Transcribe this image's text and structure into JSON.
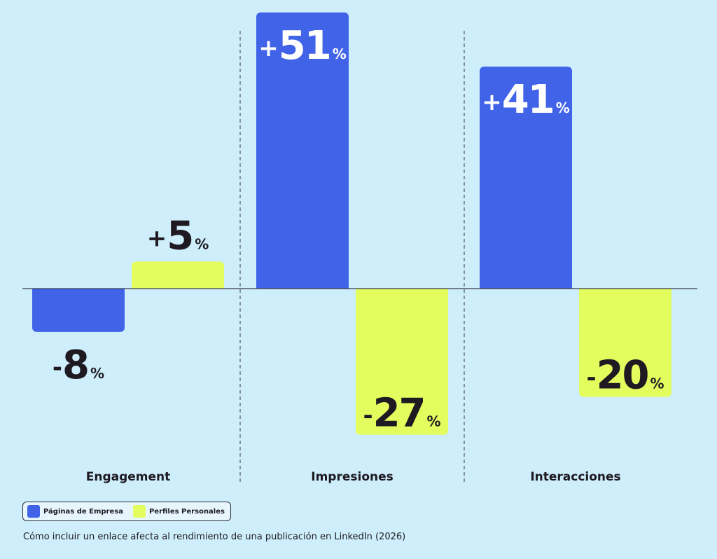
{
  "chart_data": {
    "type": "bar",
    "categories": [
      "Engagement",
      "Impresiones",
      "Interacciones"
    ],
    "series": [
      {
        "name": "Páginas de Empresa",
        "color": "#4063e8",
        "values": [
          -8,
          51,
          41
        ]
      },
      {
        "name": "Perfiles Personales",
        "color": "#e3fc5e",
        "values": [
          5,
          -27,
          -20
        ]
      }
    ],
    "value_labels": [
      [
        {
          "sign": "-",
          "num": "8",
          "pct": "%"
        },
        {
          "sign": "+",
          "num": "51",
          "pct": "%"
        },
        {
          "sign": "+",
          "num": "41",
          "pct": "%"
        }
      ],
      [
        {
          "sign": "+",
          "num": "5",
          "pct": "%"
        },
        {
          "sign": "-",
          "num": "27",
          "pct": "%"
        },
        {
          "sign": "-",
          "num": "20",
          "pct": "%"
        }
      ]
    ],
    "unit": "%",
    "ylim": [
      -27,
      51
    ],
    "grid": false,
    "legend_position": "bottom-left",
    "caption": "Cómo incluir un enlace afecta al rendimiento de una publicación en LinkedIn (2026)"
  },
  "colors": {
    "background": "#cdeefa",
    "text": "#1f1a22",
    "axis": "#3a3a4a"
  }
}
